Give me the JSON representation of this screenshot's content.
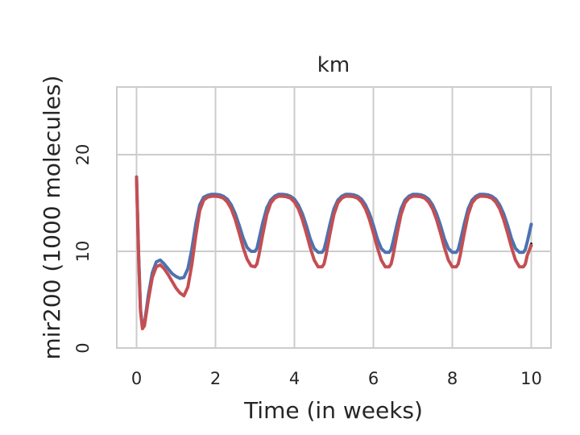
{
  "chart_data": {
    "type": "line",
    "title": "km",
    "xlabel": "Time (in weeks)",
    "ylabel": "mir200 (1000 molecules)",
    "xlim": [
      -0.5,
      10.5
    ],
    "ylim": [
      0,
      27
    ],
    "xticks": [
      0,
      2,
      4,
      6,
      8,
      10
    ],
    "yticks": [
      0,
      10,
      20
    ],
    "grid": true,
    "legend": "none",
    "colors": {
      "blue": "#4c72b0",
      "red": "#c44e52",
      "dark": "#222222",
      "grid": "#cccccc"
    },
    "series": [
      {
        "color": "#4c72b0",
        "x": [
          0,
          0.05,
          0.1,
          0.15,
          0.2,
          0.3,
          0.4,
          0.5,
          0.6,
          0.7,
          0.8,
          0.9,
          1.0,
          1.1,
          1.2,
          1.3,
          1.4,
          1.5,
          1.6,
          1.7,
          1.8,
          1.9,
          2.0,
          2.1,
          2.2,
          2.3,
          2.4,
          2.5,
          2.6,
          2.7,
          2.8,
          2.9,
          3.0,
          3.05,
          3.1,
          3.2,
          3.3,
          3.4,
          3.5,
          3.6,
          3.7,
          3.8,
          3.9,
          4.0,
          4.1,
          4.2,
          4.3,
          4.4,
          4.5,
          4.6,
          4.7,
          4.75,
          4.8,
          4.9,
          5.0,
          5.1,
          5.2,
          5.3,
          5.4,
          5.5,
          5.6,
          5.7,
          5.8,
          5.9,
          6.0,
          6.1,
          6.2,
          6.3,
          6.4,
          6.45,
          6.5,
          6.6,
          6.7,
          6.8,
          6.9,
          7.0,
          7.1,
          7.2,
          7.3,
          7.4,
          7.5,
          7.6,
          7.7,
          7.8,
          7.9,
          8.0,
          8.1,
          8.15,
          8.2,
          8.3,
          8.4,
          8.5,
          8.6,
          8.7,
          8.8,
          8.9,
          9.0,
          9.1,
          9.2,
          9.3,
          9.4,
          9.5,
          9.6,
          9.7,
          9.8,
          9.85,
          9.9,
          10.0
        ],
        "y": [
          17.7,
          10,
          4,
          2.2,
          2.5,
          5.5,
          7.8,
          8.9,
          9.1,
          8.7,
          8.2,
          7.7,
          7.4,
          7.2,
          7.3,
          8.2,
          10.2,
          12.8,
          14.8,
          15.6,
          15.8,
          15.9,
          15.9,
          15.85,
          15.7,
          15.4,
          14.8,
          13.9,
          12.7,
          11.4,
          10.4,
          10.0,
          10.0,
          10.3,
          11.2,
          13.0,
          14.5,
          15.3,
          15.7,
          15.9,
          15.9,
          15.85,
          15.7,
          15.4,
          14.8,
          13.9,
          12.7,
          11.3,
          10.3,
          9.9,
          9.9,
          10.2,
          11.0,
          12.8,
          14.4,
          15.3,
          15.7,
          15.9,
          15.9,
          15.85,
          15.7,
          15.4,
          14.8,
          13.9,
          12.7,
          11.3,
          10.3,
          9.9,
          9.9,
          10.2,
          11.0,
          12.8,
          14.4,
          15.3,
          15.7,
          15.9,
          15.9,
          15.85,
          15.7,
          15.4,
          14.8,
          13.9,
          12.7,
          11.3,
          10.3,
          9.9,
          9.9,
          10.2,
          11.0,
          12.8,
          14.4,
          15.3,
          15.7,
          15.9,
          15.9,
          15.85,
          15.7,
          15.4,
          14.8,
          13.9,
          12.7,
          11.3,
          10.3,
          9.9,
          9.9,
          10.2,
          11.0,
          12.8
        ]
      },
      {
        "color": "#222222",
        "x": [
          0,
          0.05,
          0.1,
          0.15,
          0.2,
          0.3,
          0.4,
          0.5,
          0.6,
          0.7,
          0.8,
          0.9,
          1.0,
          1.1,
          1.2,
          1.3,
          1.4,
          1.5,
          1.6,
          1.7,
          1.8,
          1.9,
          2.0,
          2.1,
          2.2,
          2.3,
          2.4,
          2.5,
          2.6,
          2.7,
          2.8,
          2.9,
          3.0,
          3.05,
          3.1,
          3.2,
          3.3,
          3.4,
          3.5,
          3.6,
          3.7,
          3.8,
          3.9,
          4.0,
          4.1,
          4.2,
          4.3,
          4.4,
          4.5,
          4.6,
          4.7,
          4.75,
          4.8,
          4.9,
          5.0,
          5.1,
          5.2,
          5.3,
          5.4,
          5.5,
          5.6,
          5.7,
          5.8,
          5.9,
          6.0,
          6.1,
          6.2,
          6.3,
          6.4,
          6.45,
          6.5,
          6.6,
          6.7,
          6.8,
          6.9,
          7.0,
          7.1,
          7.2,
          7.3,
          7.4,
          7.5,
          7.6,
          7.7,
          7.8,
          7.9,
          8.0,
          8.1,
          8.15,
          8.2,
          8.3,
          8.4,
          8.5,
          8.6,
          8.7,
          8.8,
          8.9,
          9.0,
          9.1,
          9.2,
          9.3,
          9.4,
          9.5,
          9.6,
          9.7,
          9.8,
          9.85,
          9.9,
          10.0
        ],
        "y": [
          17.6,
          9.8,
          3.8,
          2.0,
          2.3,
          5.0,
          7.3,
          8.4,
          8.6,
          8.2,
          7.6,
          6.9,
          6.2,
          5.7,
          5.4,
          6.3,
          8.6,
          11.6,
          14.2,
          15.3,
          15.6,
          15.7,
          15.7,
          15.65,
          15.5,
          15.1,
          14.4,
          13.3,
          11.9,
          10.4,
          9.2,
          8.5,
          8.4,
          8.7,
          9.6,
          11.8,
          13.8,
          15.0,
          15.5,
          15.7,
          15.7,
          15.65,
          15.5,
          15.1,
          14.4,
          13.3,
          11.9,
          10.4,
          9.1,
          8.4,
          8.4,
          8.7,
          9.6,
          11.8,
          13.8,
          15.0,
          15.5,
          15.7,
          15.7,
          15.65,
          15.5,
          15.1,
          14.4,
          13.3,
          11.9,
          10.4,
          9.1,
          8.4,
          8.4,
          8.7,
          9.6,
          11.8,
          13.8,
          15.0,
          15.5,
          15.7,
          15.7,
          15.65,
          15.5,
          15.1,
          14.4,
          13.3,
          11.9,
          10.4,
          9.1,
          8.4,
          8.4,
          8.7,
          9.6,
          11.8,
          13.8,
          15.0,
          15.5,
          15.7,
          15.7,
          15.65,
          15.5,
          15.1,
          14.4,
          13.3,
          11.9,
          10.4,
          9.1,
          8.4,
          8.4,
          8.7,
          9.6,
          10.8
        ]
      },
      {
        "color": "#c44e52",
        "x": [
          0,
          0.05,
          0.1,
          0.15,
          0.2,
          0.3,
          0.4,
          0.5,
          0.6,
          0.7,
          0.8,
          0.9,
          1.0,
          1.1,
          1.2,
          1.3,
          1.4,
          1.5,
          1.6,
          1.7,
          1.8,
          1.9,
          2.0,
          2.1,
          2.2,
          2.3,
          2.4,
          2.5,
          2.6,
          2.7,
          2.8,
          2.9,
          3.0,
          3.05,
          3.1,
          3.2,
          3.3,
          3.4,
          3.5,
          3.6,
          3.7,
          3.8,
          3.9,
          4.0,
          4.1,
          4.2,
          4.3,
          4.4,
          4.5,
          4.6,
          4.7,
          4.75,
          4.8,
          4.9,
          5.0,
          5.1,
          5.2,
          5.3,
          5.4,
          5.5,
          5.6,
          5.7,
          5.8,
          5.9,
          6.0,
          6.1,
          6.2,
          6.3,
          6.4,
          6.45,
          6.5,
          6.6,
          6.7,
          6.8,
          6.9,
          7.0,
          7.1,
          7.2,
          7.3,
          7.4,
          7.5,
          7.6,
          7.7,
          7.8,
          7.9,
          8.0,
          8.1,
          8.15,
          8.2,
          8.3,
          8.4,
          8.5,
          8.6,
          8.7,
          8.8,
          8.9,
          9.0,
          9.1,
          9.2,
          9.3,
          9.4,
          9.5,
          9.6,
          9.7,
          9.8,
          9.85,
          9.9,
          10.0
        ],
        "y": [
          17.6,
          9.8,
          3.8,
          2.0,
          2.3,
          5.0,
          7.3,
          8.4,
          8.6,
          8.2,
          7.6,
          6.9,
          6.2,
          5.7,
          5.4,
          6.3,
          8.6,
          11.6,
          14.2,
          15.3,
          15.6,
          15.7,
          15.7,
          15.65,
          15.5,
          15.1,
          14.4,
          13.3,
          11.9,
          10.4,
          9.2,
          8.5,
          8.4,
          8.7,
          9.6,
          11.8,
          13.8,
          15.0,
          15.5,
          15.7,
          15.7,
          15.65,
          15.5,
          15.1,
          14.4,
          13.3,
          11.9,
          10.4,
          9.1,
          8.4,
          8.4,
          8.7,
          9.6,
          11.8,
          13.8,
          15.0,
          15.5,
          15.7,
          15.7,
          15.65,
          15.5,
          15.1,
          14.4,
          13.3,
          11.9,
          10.4,
          9.1,
          8.4,
          8.4,
          8.7,
          9.6,
          11.8,
          13.8,
          15.0,
          15.5,
          15.7,
          15.7,
          15.65,
          15.5,
          15.1,
          14.4,
          13.3,
          11.9,
          10.4,
          9.1,
          8.4,
          8.4,
          8.7,
          9.6,
          11.8,
          13.8,
          15.0,
          15.5,
          15.7,
          15.7,
          15.65,
          15.5,
          15.1,
          14.4,
          13.3,
          11.9,
          10.4,
          9.1,
          8.4,
          8.4,
          8.7,
          9.6,
          10.6
        ]
      }
    ]
  }
}
